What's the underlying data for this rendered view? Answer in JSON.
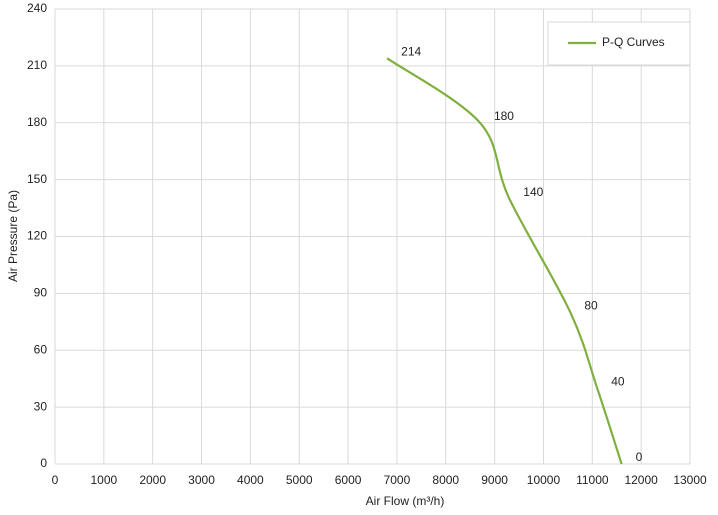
{
  "chart_data": {
    "type": "line",
    "x_label": "Air Flow  (m³/h)",
    "y_label": "Air Pressure  (Pa)",
    "x": [
      6800,
      8700,
      9300,
      10550,
      11100,
      11600
    ],
    "series": [
      {
        "name": "P-Q Curves",
        "color": "#7fb03f",
        "values": [
          214,
          180,
          140,
          80,
          40,
          0
        ]
      }
    ],
    "xlim": [
      0,
      13000
    ],
    "xticks": [
      0,
      1000,
      2000,
      3000,
      4000,
      5000,
      6000,
      7000,
      8000,
      9000,
      10000,
      11000,
      12000,
      13000
    ],
    "ylim": [
      0,
      240
    ],
    "yticks": [
      0,
      30,
      60,
      90,
      120,
      150,
      180,
      210,
      240
    ],
    "grid": true,
    "legend": "upper right"
  }
}
